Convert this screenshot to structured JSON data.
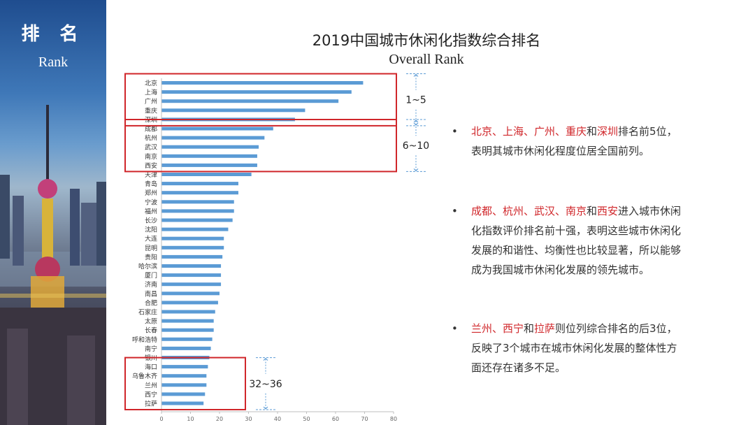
{
  "sidebar": {
    "title": "排 名",
    "subtitle": "Rank"
  },
  "title": "2019中国城市休闲化指数综合排名",
  "subtitle": "Overall Rank",
  "chart_data": {
    "type": "bar",
    "orientation": "horizontal",
    "categories": [
      "北京",
      "上海",
      "广州",
      "重庆",
      "深圳",
      "成都",
      "杭州",
      "武汉",
      "南京",
      "西安",
      "天津",
      "青岛",
      "郑州",
      "宁波",
      "福州",
      "长沙",
      "沈阳",
      "大连",
      "昆明",
      "贵阳",
      "哈尔滨",
      "厦门",
      "济南",
      "南昌",
      "合肥",
      "石家庄",
      "太原",
      "长春",
      "呼和浩特",
      "南宁",
      "银川",
      "海口",
      "乌鲁木齐",
      "兰州",
      "西宁",
      "拉萨"
    ],
    "values": [
      69.5,
      65.5,
      61,
      49.5,
      46,
      38.5,
      35.5,
      33.5,
      33,
      33,
      31,
      26.5,
      26.5,
      25,
      25,
      24.5,
      23,
      21.5,
      21.5,
      21,
      20.5,
      20.5,
      20.5,
      20,
      19.5,
      18.5,
      18,
      18,
      17.5,
      17,
      16.5,
      16,
      15.5,
      15.5,
      15,
      14.5
    ],
    "xlim": [
      0,
      80
    ],
    "xticks": [
      "0",
      "10",
      "20",
      "30",
      "40",
      "50",
      "60",
      "70",
      "80"
    ],
    "bar_color": "#5b9bd5",
    "grid": false,
    "groups": [
      {
        "label": "1~5",
        "start": 0,
        "end": 4
      },
      {
        "label": "6~10",
        "start": 5,
        "end": 9
      },
      {
        "label": "32~36",
        "start": 31,
        "end": 35
      }
    ],
    "highlight_color": "#d0262a",
    "arrow_color": "#5b9bd5"
  },
  "bullets": [
    [
      {
        "t": "北京、上海、广州、重庆",
        "red": true
      },
      {
        "t": "和",
        "red": false
      },
      {
        "t": "深圳",
        "red": true
      },
      {
        "t": "排名前5位，表明其城市休闲化程度位居全国前列。",
        "red": false
      }
    ],
    [
      {
        "t": "成都、杭州、武汉、南京",
        "red": true
      },
      {
        "t": "和",
        "red": false
      },
      {
        "t": "西安",
        "red": true
      },
      {
        "t": "进入城市休闲化指数评价排名前十强，表明这些城市休闲化发展的和谐性、均衡性也比较显著，所以能够成为我国城市休闲化发展的领先城市。",
        "red": false
      }
    ],
    [
      {
        "t": "兰州、西宁",
        "red": true
      },
      {
        "t": "和",
        "red": false
      },
      {
        "t": "拉萨",
        "red": true
      },
      {
        "t": "则位列综合排名的后3位，反映了3个城市在城市休闲化发展的整体性方面还存在诸多不足。",
        "red": false
      }
    ]
  ]
}
